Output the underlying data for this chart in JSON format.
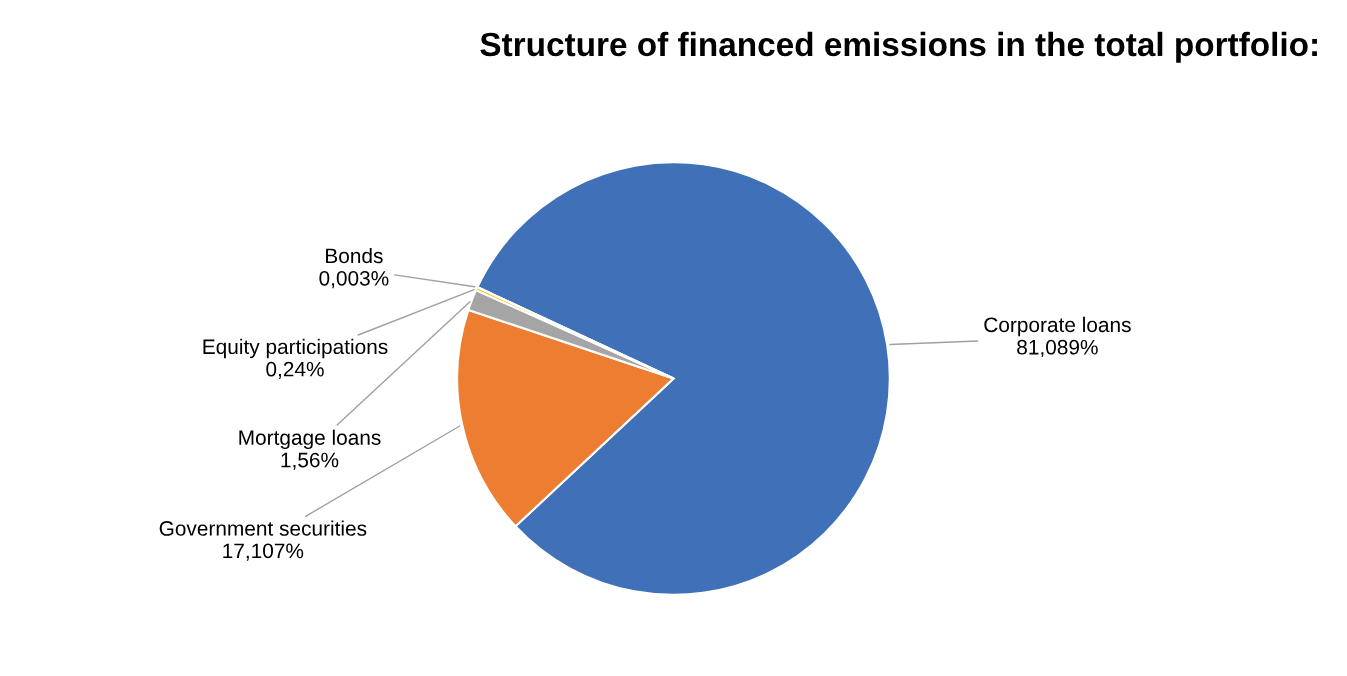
{
  "chart_data": {
    "type": "pie",
    "title": "Structure of financed emissions in the total portfolio:",
    "categories": [
      "Corporate loans",
      "Government securities",
      "Mortgage loans",
      "Equity participations",
      "Bonds"
    ],
    "values": [
      81.089,
      17.107,
      1.56,
      0.24,
      0.003
    ],
    "value_labels": [
      "81,089%",
      "17,107%",
      "1,56%",
      "0,24%",
      "0,003%"
    ],
    "colors": [
      "#3f70b8",
      "#ed7d31",
      "#a5a5a5",
      "#ffc000",
      "#5b9bd5"
    ],
    "legend": false
  }
}
